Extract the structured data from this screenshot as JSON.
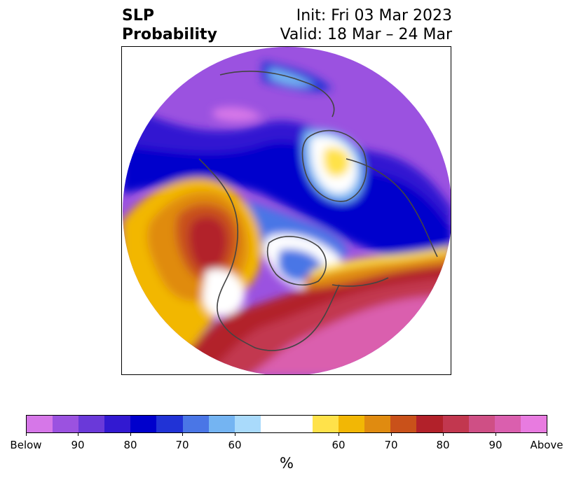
{
  "title": {
    "variable_line1": "SLP",
    "variable_line2": "Probability",
    "init": "Init: Fri 03 Mar 2023",
    "valid": "Valid: 18 Mar – 24 Mar"
  },
  "colorbar": {
    "colors": [
      "#d677e8",
      "#9b52e0",
      "#6a39d9",
      "#3219d1",
      "#0000cc",
      "#2133d6",
      "#4a76e6",
      "#74b4f2",
      "#a9dafb",
      "#ffffff",
      "#ffe24a",
      "#f2b705",
      "#e08b10",
      "#c9511a",
      "#b2212a",
      "#c2374f",
      "#cf4f85",
      "#da5fae",
      "#e87be0"
    ],
    "ticks": [
      "Below",
      "90",
      "80",
      "70",
      "60",
      "60",
      "70",
      "80",
      "90",
      "Above"
    ],
    "label": "%"
  }
}
